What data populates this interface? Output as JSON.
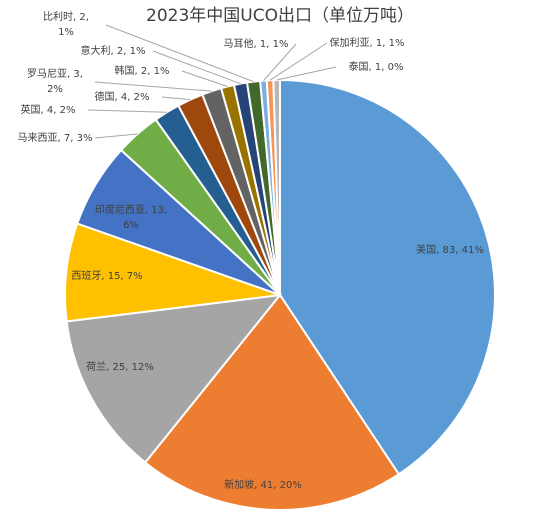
{
  "chart_data": {
    "type": "pie",
    "title": "2023年中国UCO出口（单位万吨）",
    "categories": [
      "美国",
      "新加坡",
      "荷兰",
      "西班牙",
      "印度尼西亚",
      "马来西亚",
      "英国",
      "德国",
      "罗马尼亚",
      "韩国",
      "意大利",
      "比利时",
      "马耳他",
      "保加利亚",
      "泰国"
    ],
    "values": [
      83,
      41,
      25,
      15,
      13,
      7,
      4,
      4,
      3,
      2,
      2,
      2,
      1,
      1,
      1
    ],
    "value_labels": [
      [
        "美国, 83, 41%"
      ],
      [
        "新加坡, 41, 20%"
      ],
      [
        "荷兰, 25, 12%"
      ],
      [
        "西班牙, 15, 7%"
      ],
      [
        "印度尼西亚, 13,",
        "6%"
      ],
      [
        "马来西亚, 7, 3%"
      ],
      [
        "英国, 4, 2%"
      ],
      [
        "德国, 4, 2%"
      ],
      [
        "罗马尼亚, 3,",
        "2%"
      ],
      [
        "韩国, 2, 1%"
      ],
      [
        "意大利, 2, 1%"
      ],
      [
        "比利时, 2,",
        "1%"
      ],
      [
        "马耳他, 1, 1%"
      ],
      [
        "保加利亚, 1, 1%"
      ],
      [
        "泰国, 1, 0%"
      ]
    ],
    "colors": [
      "#5b9bd5",
      "#ed7d31",
      "#a5a5a5",
      "#ffc000",
      "#4472c4",
      "#70ad47",
      "#255e91",
      "#9e480e",
      "#636363",
      "#997300",
      "#264478",
      "#43682b",
      "#7cafdd",
      "#f1975a",
      "#b7b7b7"
    ]
  }
}
